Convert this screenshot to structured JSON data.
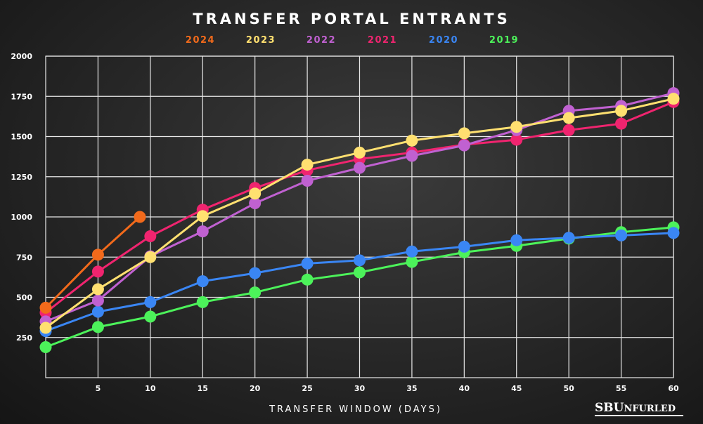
{
  "logo": {
    "bold_part": "SBU",
    "rest_part": "NFURLED"
  },
  "chart_data": {
    "type": "line",
    "title": "TRANSFER PORTAL ENTRANTS",
    "xlabel": "TRANSFER WINDOW (DAYS)",
    "ylabel": "",
    "xlim": [
      0,
      60
    ],
    "ylim": [
      0,
      2000
    ],
    "x_ticks": [
      5,
      10,
      15,
      20,
      25,
      30,
      35,
      40,
      45,
      50,
      55,
      60
    ],
    "y_ticks": [
      250,
      500,
      750,
      1000,
      1250,
      1500,
      1750,
      2000
    ],
    "grid": true,
    "legend_position": "top-center",
    "series": [
      {
        "name": "2024",
        "color": "#f26a1b",
        "x": [
          0,
          5,
          9
        ],
        "y": [
          435,
          765,
          1000
        ]
      },
      {
        "name": "2023",
        "color": "#ffe070",
        "x": [
          0,
          5,
          10,
          15,
          20,
          25,
          30,
          35,
          40,
          45,
          50,
          55,
          60
        ],
        "y": [
          310,
          550,
          750,
          1005,
          1145,
          1325,
          1400,
          1475,
          1520,
          1560,
          1615,
          1660,
          1735
        ]
      },
      {
        "name": "2022",
        "color": "#c061d1",
        "x": [
          0,
          5,
          10,
          15,
          20,
          25,
          30,
          35,
          40,
          45,
          50,
          55,
          60
        ],
        "y": [
          350,
          480,
          755,
          910,
          1085,
          1225,
          1305,
          1380,
          1445,
          1540,
          1660,
          1690,
          1770
        ]
      },
      {
        "name": "2021",
        "color": "#f0246f",
        "x": [
          0,
          5,
          10,
          15,
          20,
          25,
          30,
          35,
          40,
          45,
          50,
          55,
          60
        ],
        "y": [
          405,
          660,
          880,
          1045,
          1180,
          1290,
          1360,
          1400,
          1450,
          1480,
          1540,
          1580,
          1715
        ]
      },
      {
        "name": "2020",
        "color": "#3a86f4",
        "x": [
          0,
          5,
          10,
          15,
          20,
          25,
          30,
          35,
          40,
          45,
          50,
          55,
          60
        ],
        "y": [
          290,
          410,
          470,
          600,
          650,
          710,
          730,
          785,
          815,
          855,
          870,
          885,
          900
        ]
      },
      {
        "name": "2019",
        "color": "#4cf25a",
        "x": [
          0,
          5,
          10,
          15,
          20,
          25,
          30,
          35,
          40,
          45,
          50,
          55,
          60
        ],
        "y": [
          190,
          315,
          380,
          470,
          530,
          610,
          655,
          720,
          780,
          820,
          865,
          905,
          935
        ]
      }
    ]
  }
}
